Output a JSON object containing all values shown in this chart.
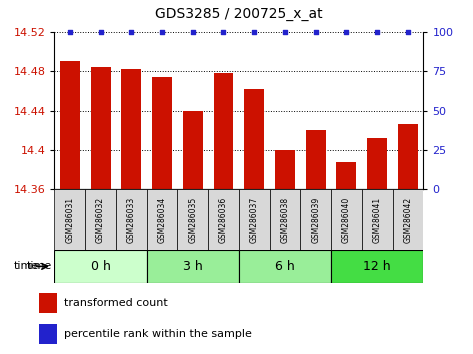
{
  "title": "GDS3285 / 200725_x_at",
  "samples": [
    "GSM286031",
    "GSM286032",
    "GSM286033",
    "GSM286034",
    "GSM286035",
    "GSM286036",
    "GSM286037",
    "GSM286038",
    "GSM286039",
    "GSM286040",
    "GSM286041",
    "GSM286042"
  ],
  "bar_values": [
    14.49,
    14.484,
    14.482,
    14.474,
    14.44,
    14.478,
    14.462,
    14.4,
    14.42,
    14.388,
    14.412,
    14.426
  ],
  "bar_color": "#cc1100",
  "percentile_color": "#2222cc",
  "ylim_left": [
    14.36,
    14.52
  ],
  "ylim_right": [
    0,
    100
  ],
  "yticks_left": [
    14.36,
    14.4,
    14.44,
    14.48,
    14.52
  ],
  "yticks_right": [
    0,
    25,
    50,
    75,
    100
  ],
  "group_spans": [
    {
      "label": "0 h",
      "start": 0,
      "end": 3,
      "color": "#ccffcc"
    },
    {
      "label": "3 h",
      "start": 3,
      "end": 6,
      "color": "#99ee99"
    },
    {
      "label": "6 h",
      "start": 6,
      "end": 9,
      "color": "#99ee99"
    },
    {
      "label": "12 h",
      "start": 9,
      "end": 12,
      "color": "#44dd44"
    }
  ],
  "legend_bar_label": "transformed count",
  "legend_pct_label": "percentile rank within the sample"
}
